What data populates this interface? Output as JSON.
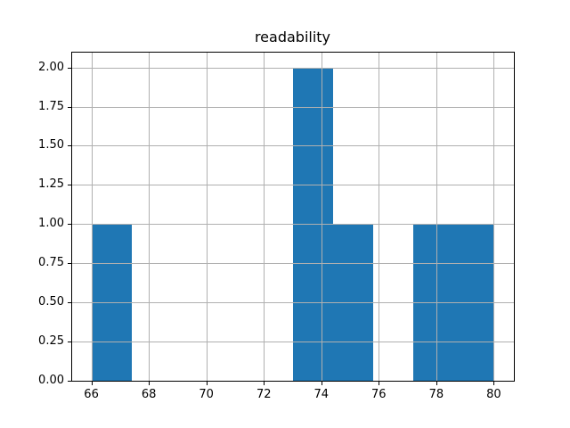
{
  "chart_data": {
    "type": "bar",
    "subtype": "histogram",
    "title": "readability",
    "xlabel": "",
    "ylabel": "",
    "xlim": [
      65.3,
      80.7
    ],
    "ylim": [
      0,
      2.1
    ],
    "grid": true,
    "legend": false,
    "xticks": [
      66,
      68,
      70,
      72,
      74,
      76,
      78,
      80
    ],
    "xtick_labels": [
      "66",
      "68",
      "70",
      "72",
      "74",
      "76",
      "78",
      "80"
    ],
    "yticks": [
      0.0,
      0.25,
      0.5,
      0.75,
      1.0,
      1.25,
      1.5,
      1.75,
      2.0
    ],
    "ytick_labels": [
      "0.00",
      "0.25",
      "0.50",
      "0.75",
      "1.00",
      "1.25",
      "1.50",
      "1.75",
      "2.00"
    ],
    "bin_edges": [
      66.0,
      67.4,
      68.8,
      70.2,
      71.6,
      73.0,
      74.4,
      75.8,
      77.2,
      78.6,
      80.0
    ],
    "counts": [
      1,
      0,
      0,
      0,
      0,
      2,
      1,
      0,
      1,
      1
    ],
    "colors": {
      "bar": "#1f77b4",
      "grid": "#b0b0b0",
      "spine": "#000000",
      "text": "#000000",
      "background": "#ffffff"
    }
  }
}
